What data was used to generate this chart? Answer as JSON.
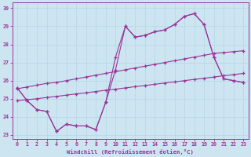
{
  "xlabel": "Windchill (Refroidissement éolien,°C)",
  "bg_color": "#cce5f0",
  "line_color": "#993399",
  "grid_color": "#aaddee",
  "x": [
    0,
    1,
    2,
    3,
    4,
    5,
    6,
    7,
    8,
    9,
    10,
    11,
    12,
    13,
    14,
    15,
    16,
    17,
    18,
    19,
    20,
    21,
    22,
    23
  ],
  "y_wiggly": [
    25.6,
    24.9,
    24.4,
    24.3,
    23.2,
    23.6,
    23.5,
    23.5,
    23.3,
    24.8,
    27.3,
    29.0,
    28.4,
    28.5,
    28.7,
    28.8,
    29.1,
    29.55,
    29.7,
    29.1,
    27.3,
    26.1,
    26.0,
    25.9
  ],
  "y_wiggly2": [
    25.6,
    24.9,
    24.4,
    24.3,
    23.2,
    23.6,
    23.5,
    23.5,
    23.3,
    24.8,
    26.6,
    29.0,
    28.4,
    28.5,
    28.7,
    28.8,
    29.1,
    29.55,
    29.7,
    29.1,
    27.3,
    26.1,
    26.0,
    25.9
  ],
  "y_straight_low": [
    24.9,
    24.95,
    25.0,
    25.07,
    25.13,
    25.2,
    25.27,
    25.33,
    25.4,
    25.47,
    25.53,
    25.6,
    25.67,
    25.73,
    25.8,
    25.87,
    25.93,
    26.0,
    26.07,
    26.13,
    26.2,
    26.27,
    26.33,
    26.4
  ],
  "y_straight_high": [
    25.55,
    25.65,
    25.75,
    25.85,
    25.9,
    26.0,
    26.1,
    26.2,
    26.3,
    26.4,
    26.5,
    26.6,
    26.7,
    26.8,
    26.9,
    27.0,
    27.1,
    27.2,
    27.3,
    27.4,
    27.5,
    27.55,
    27.6,
    27.65
  ],
  "ylim": [
    22.8,
    30.3
  ],
  "yticks": [
    23,
    24,
    25,
    26,
    27,
    28,
    29,
    30
  ],
  "xticks": [
    0,
    1,
    2,
    3,
    4,
    5,
    6,
    7,
    8,
    9,
    10,
    11,
    12,
    13,
    14,
    15,
    16,
    17,
    18,
    19,
    20,
    21,
    22,
    23
  ]
}
